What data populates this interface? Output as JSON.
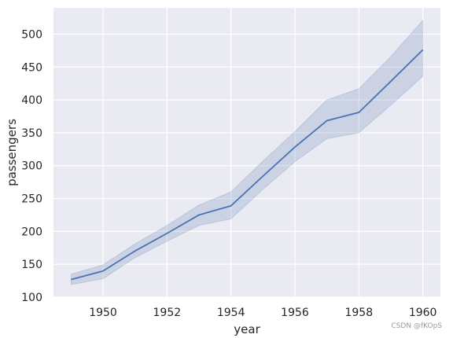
{
  "chart_data": {
    "type": "line",
    "title": "",
    "xlabel": "year",
    "ylabel": "passengers",
    "xlim": [
      1948.45,
      1960.55
    ],
    "ylim": [
      100,
      540
    ],
    "xticks": [
      1950,
      1952,
      1954,
      1956,
      1958,
      1960
    ],
    "yticks": [
      100,
      150,
      200,
      250,
      300,
      350,
      400,
      450,
      500
    ],
    "grid": true,
    "legend": "none",
    "colors": {
      "background": "#eaeaf2",
      "grid": "#ffffff",
      "line": "#4c72b0",
      "band": "#4c72b0"
    },
    "x": [
      1949,
      1950,
      1951,
      1952,
      1953,
      1954,
      1955,
      1956,
      1957,
      1958,
      1959,
      1960
    ],
    "series": [
      {
        "values": [
          126.7,
          139.7,
          170.2,
          197.0,
          225.0,
          238.9,
          284.0,
          328.3,
          368.4,
          381.0,
          428.3,
          476.2
        ],
        "ci_low": [
          119,
          128,
          160,
          185,
          209,
          219,
          264,
          306,
          341,
          350,
          392,
          436
        ],
        "ci_high": [
          135,
          149,
          181,
          209,
          240,
          260,
          307,
          352,
          400,
          417,
          466,
          521
        ]
      }
    ]
  },
  "watermark": "CSDN @fKOpS"
}
